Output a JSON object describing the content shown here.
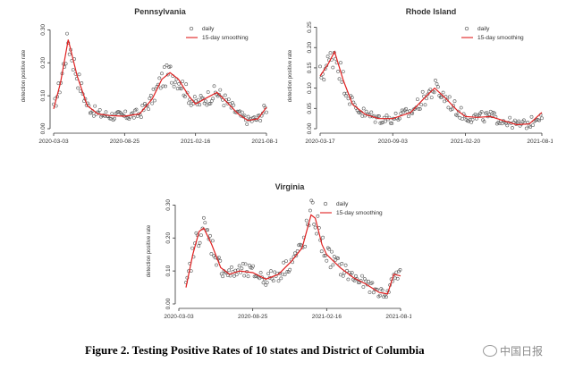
{
  "caption": "Figure 2. Testing Positive Rates of 10 states and District of Columbia",
  "watermark": "中国日报",
  "colors": {
    "points": "#555555",
    "smooth": "#e02020",
    "axis": "#333333"
  },
  "chart_data": [
    {
      "type": "scatter",
      "title": "Pennsylvania",
      "ylabel": "detection positive rate",
      "ylim": [
        0,
        0.32
      ],
      "yticks": [
        0.0,
        0.1,
        0.2,
        0.3
      ],
      "yticklabels": [
        "0.00",
        "0.10",
        "0.20",
        "0.30"
      ],
      "xlim": [
        "2020-03-03",
        "2021-08-10"
      ],
      "xticks": [
        "2020-03-03",
        "2020-08-25",
        "2021-02-16",
        "2021-08-10"
      ],
      "legend": {
        "position": "top-right",
        "entries": [
          "daily",
          "15-day smoothing"
        ]
      },
      "series": [
        {
          "name": "daily",
          "style": "points"
        },
        {
          "name": "15-day smoothing",
          "style": "line",
          "x": [
            "2020-03-03",
            "2020-03-20",
            "2020-04-08",
            "2020-04-30",
            "2020-05-25",
            "2020-06-20",
            "2020-07-20",
            "2020-08-25",
            "2020-10-01",
            "2020-11-01",
            "2020-11-25",
            "2020-12-15",
            "2021-01-05",
            "2021-01-30",
            "2021-02-16",
            "2021-03-10",
            "2021-04-10",
            "2021-05-01",
            "2021-06-01",
            "2021-06-25",
            "2021-07-20",
            "2021-08-10"
          ],
          "y": [
            0.06,
            0.14,
            0.27,
            0.16,
            0.07,
            0.045,
            0.04,
            0.038,
            0.045,
            0.09,
            0.15,
            0.17,
            0.15,
            0.1,
            0.075,
            0.09,
            0.11,
            0.085,
            0.045,
            0.025,
            0.03,
            0.065
          ]
        }
      ]
    },
    {
      "type": "scatter",
      "title": "Rhode Island",
      "ylabel": "detection positive rate",
      "ylim": [
        0,
        0.26
      ],
      "yticks": [
        0.0,
        0.05,
        0.1,
        0.15,
        0.2,
        0.25
      ],
      "yticklabels": [
        "0.00",
        "0.05",
        "0.10",
        "0.15",
        "0.20",
        "0.25"
      ],
      "xlim": [
        "2020-03-17",
        "2021-08-18"
      ],
      "xticks": [
        "2020-03-17",
        "2020-09-03",
        "2021-02-20",
        "2021-08-18"
      ],
      "legend": {
        "position": "top-right",
        "entries": [
          "daily",
          "15-day smoothing"
        ]
      },
      "series": [
        {
          "name": "daily",
          "style": "points"
        },
        {
          "name": "15-day smoothing",
          "style": "line",
          "x": [
            "2020-03-17",
            "2020-04-05",
            "2020-04-20",
            "2020-05-10",
            "2020-06-01",
            "2020-07-01",
            "2020-08-01",
            "2020-09-03",
            "2020-10-15",
            "2020-11-20",
            "2020-12-10",
            "2021-01-05",
            "2021-02-01",
            "2021-02-20",
            "2021-03-20",
            "2021-04-20",
            "2021-05-20",
            "2021-06-20",
            "2021-07-20",
            "2021-08-18"
          ],
          "y": [
            0.13,
            0.16,
            0.19,
            0.12,
            0.06,
            0.035,
            0.025,
            0.025,
            0.04,
            0.08,
            0.1,
            0.075,
            0.045,
            0.03,
            0.028,
            0.03,
            0.02,
            0.01,
            0.012,
            0.04
          ]
        }
      ]
    },
    {
      "type": "scatter",
      "title": "Virginia",
      "ylabel": "detection positive rate",
      "ylim": [
        0,
        0.32
      ],
      "yticks": [
        0.0,
        0.1,
        0.2,
        0.3
      ],
      "yticklabels": [
        "0.00",
        "0.10",
        "0.20",
        "0.30"
      ],
      "xlim": [
        "2020-03-03",
        "2021-08-10"
      ],
      "xticks": [
        "2020-03-03",
        "2020-08-25",
        "2021-02-16",
        "2021-08-10"
      ],
      "legend": {
        "position": "top-right",
        "entries": [
          "daily",
          "15-day smoothing"
        ]
      },
      "series": [
        {
          "name": "daily",
          "style": "points"
        },
        {
          "name": "15-day smoothing",
          "style": "line",
          "x": [
            "2020-03-20",
            "2020-04-05",
            "2020-04-20",
            "2020-05-01",
            "2020-05-20",
            "2020-06-10",
            "2020-07-01",
            "2020-07-25",
            "2020-08-25",
            "2020-09-25",
            "2020-10-25",
            "2020-11-25",
            "2020-12-20",
            "2021-01-10",
            "2021-01-20",
            "2021-02-05",
            "2021-02-16",
            "2021-03-20",
            "2021-04-20",
            "2021-05-20",
            "2021-06-20",
            "2021-07-10",
            "2021-07-25",
            "2021-08-10"
          ],
          "y": [
            0.05,
            0.15,
            0.22,
            0.23,
            0.18,
            0.11,
            0.09,
            0.1,
            0.095,
            0.075,
            0.09,
            0.13,
            0.17,
            0.27,
            0.26,
            0.18,
            0.15,
            0.11,
            0.08,
            0.06,
            0.035,
            0.03,
            0.09,
            0.085
          ]
        }
      ]
    }
  ]
}
